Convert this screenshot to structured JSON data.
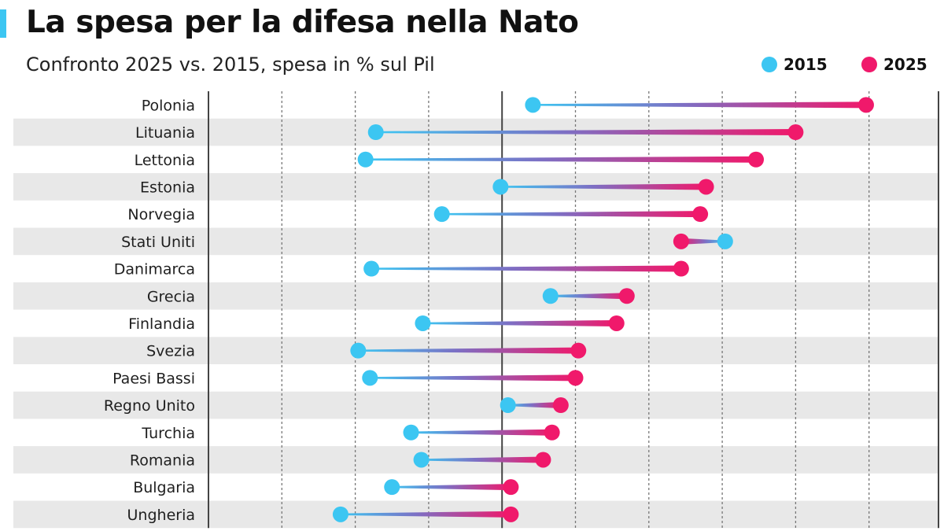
{
  "header": {
    "title": "La spesa per la difesa nella Nato",
    "subtitle": "Confronto 2025 vs. 2015, spesa in % sul Pil"
  },
  "legend": [
    {
      "label": "2015",
      "color": "#3cc6f2"
    },
    {
      "label": "2025",
      "color": "#f0196b"
    }
  ],
  "colors": {
    "accent": "#3cc6f2",
    "y2015": "#3cc6f2",
    "y2025": "#f0196b",
    "band": "#e8e8e8",
    "axis": "#444444",
    "grid": "#777777"
  },
  "chart_data": {
    "type": "dumbbell",
    "title": "La spesa per la difesa nella Nato",
    "subtitle": "Confronto 2025 vs. 2015, spesa in % sul Pil",
    "xlabel": "",
    "ylabel": "",
    "xlim": [
      0,
      5
    ],
    "grid_step": 0.5,
    "reference_line": 2.0,
    "grid": true,
    "legend_position": "top-right",
    "categories": [
      "Polonia",
      "Lituania",
      "Lettonia",
      "Estonia",
      "Norvegia",
      "Stati Uniti",
      "Danimarca",
      "Grecia",
      "Finlandia",
      "Svezia",
      "Paesi Bassi",
      "Regno Unito",
      "Turchia",
      "Romania",
      "Bulgaria",
      "Ungheria"
    ],
    "series": [
      {
        "name": "2015",
        "values": [
          2.21,
          1.14,
          1.07,
          1.99,
          1.59,
          3.52,
          1.11,
          2.33,
          1.46,
          1.02,
          1.1,
          2.04,
          1.38,
          1.45,
          1.25,
          0.9
        ]
      },
      {
        "name": "2025",
        "values": [
          4.48,
          4.0,
          3.73,
          3.39,
          3.35,
          3.22,
          3.22,
          2.85,
          2.78,
          2.52,
          2.5,
          2.4,
          2.34,
          2.28,
          2.06,
          2.06
        ]
      }
    ]
  }
}
